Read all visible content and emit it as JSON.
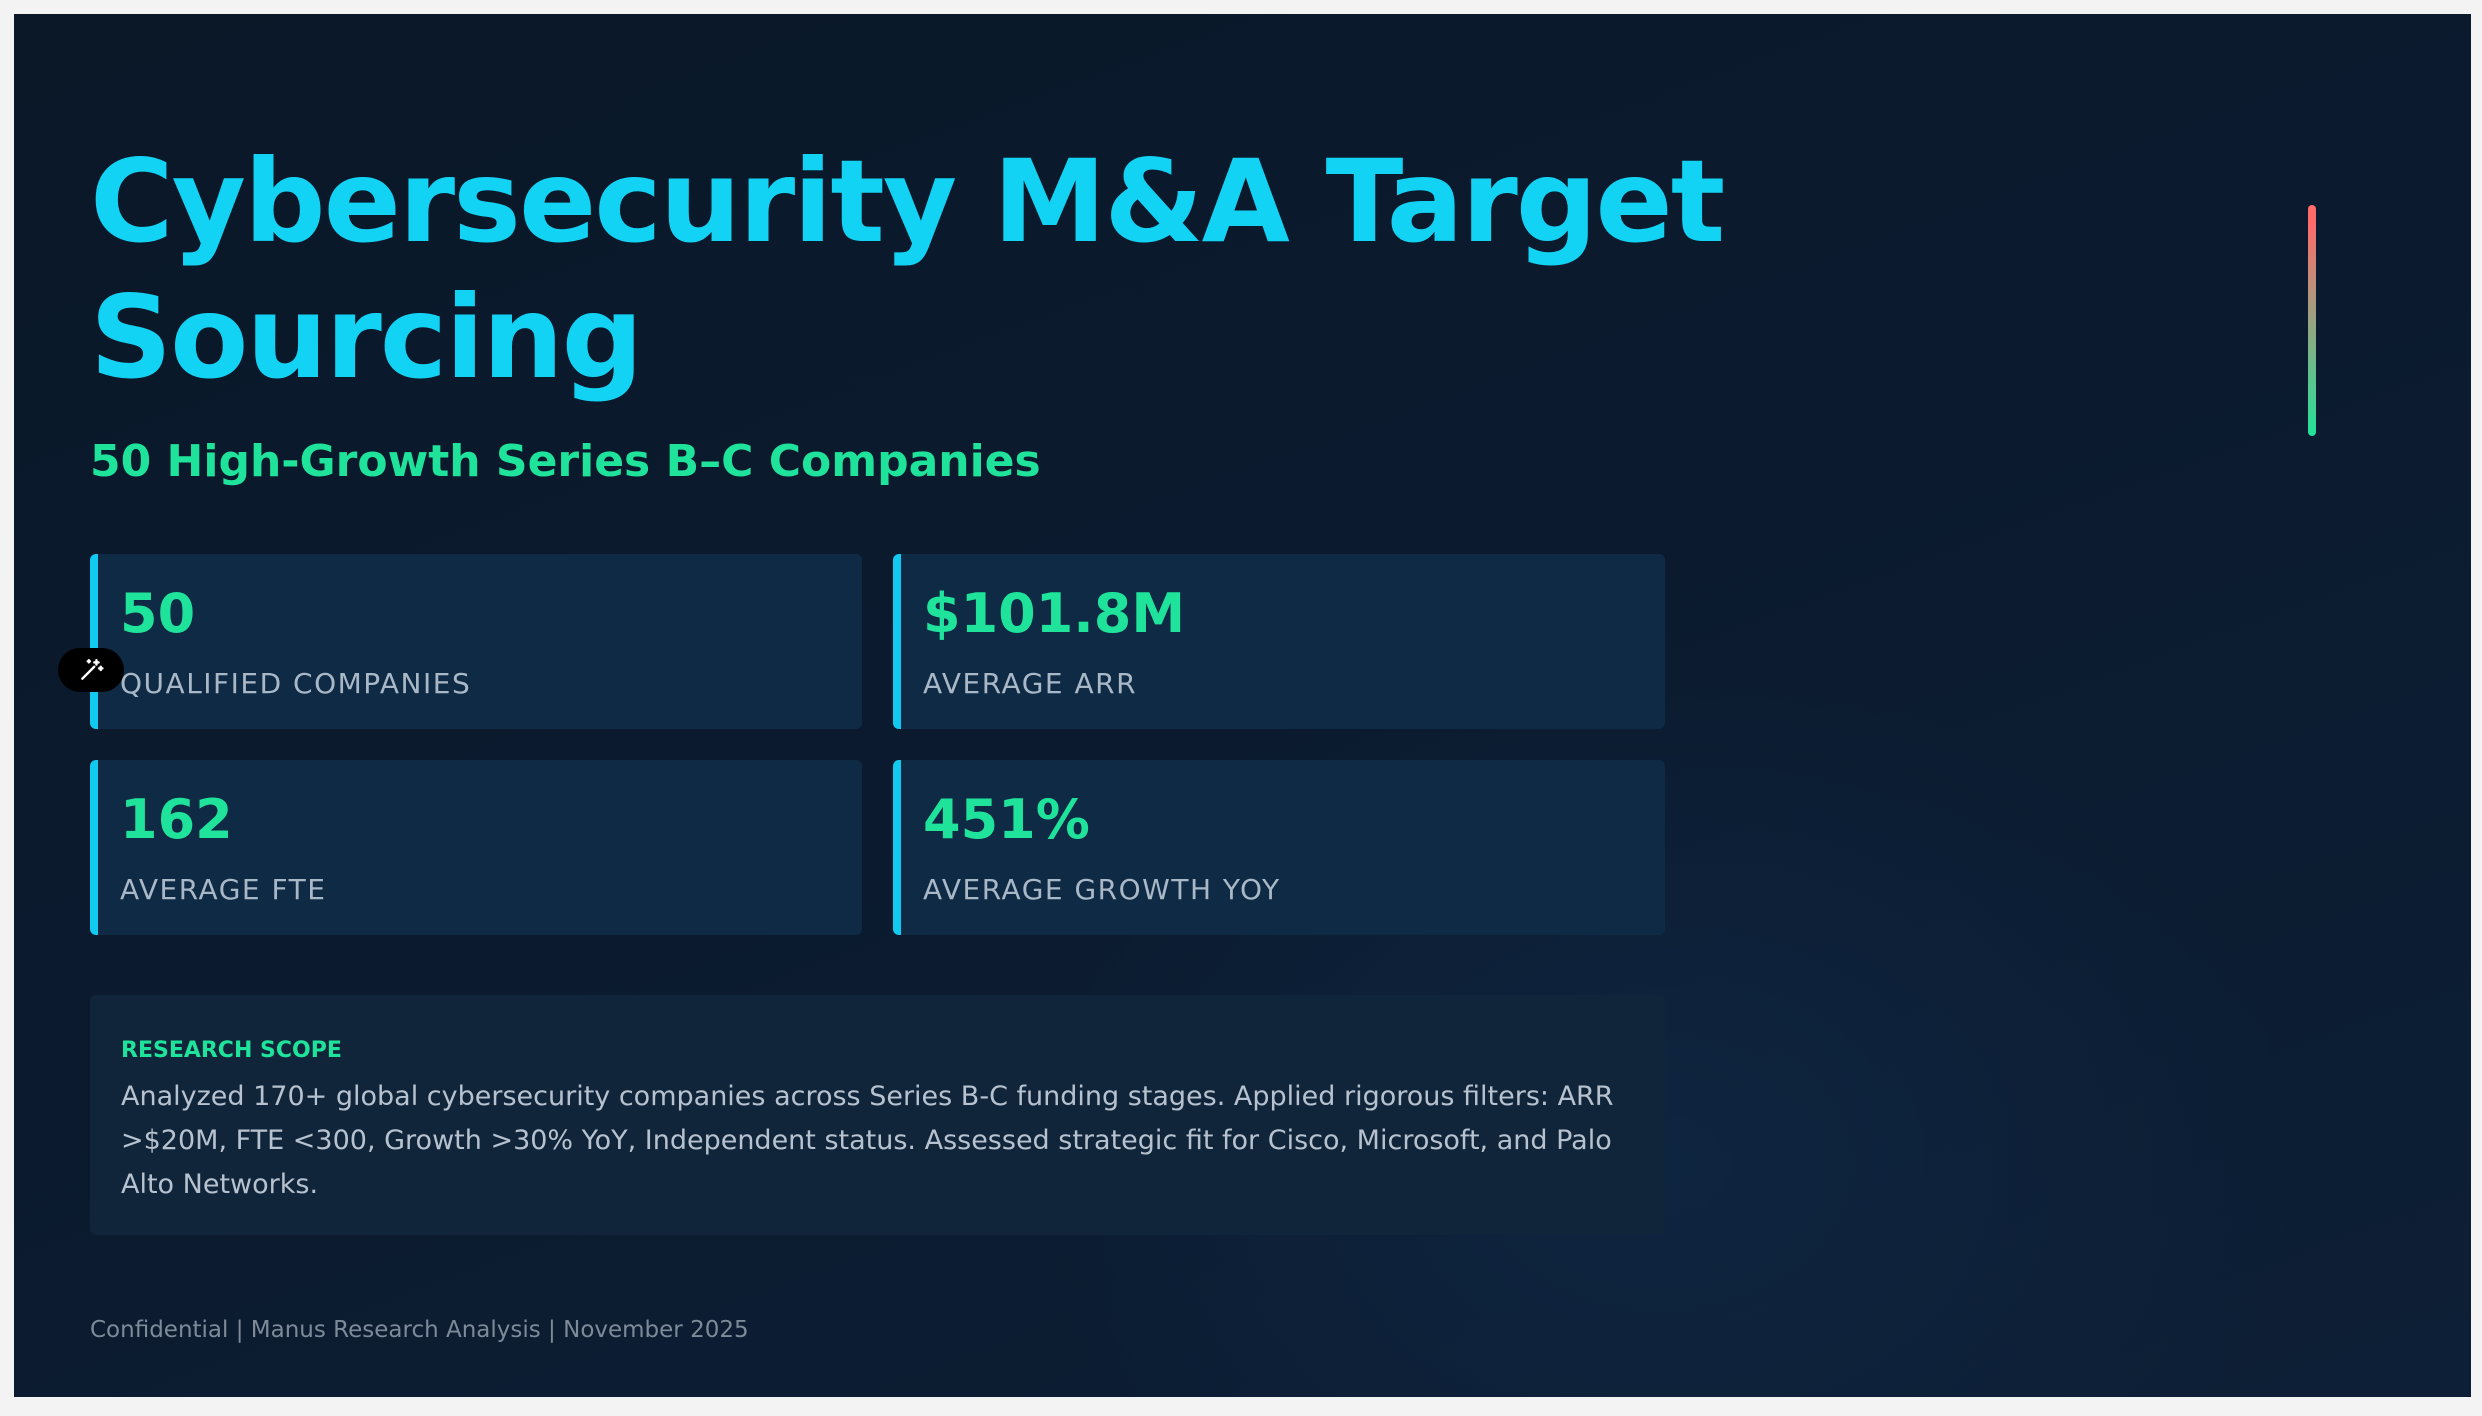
{
  "slide": {
    "title": "Cybersecurity M&A Target Sourcing",
    "subtitle": "50 High-Growth Series B–C Companies",
    "stats": [
      {
        "value": "50",
        "label": "QUALIFIED COMPANIES"
      },
      {
        "value": "$101.8M",
        "label": "AVERAGE ARR"
      },
      {
        "value": "162",
        "label": "AVERAGE FTE"
      },
      {
        "value": "451%",
        "label": "AVERAGE GROWTH YOY"
      }
    ],
    "scope": {
      "heading": "RESEARCH SCOPE",
      "body": "Analyzed 170+ global cybersecurity companies across Series B-C funding stages. Applied rigorous filters: ARR >$20M, FTE <300, Growth >30% YoY, Independent status. Assessed strategic fit for Cisco, Microsoft, and Palo Alto Networks."
    },
    "footer": "Confidential | Manus Research Analysis | November 2025"
  },
  "icons": {
    "edit_fab": "magic-wand-icon"
  },
  "colors": {
    "background": "#0b1a2e",
    "title": "#12d3f3",
    "accent_green": "#1fe39b",
    "card": "#0f2a45",
    "card_border": "#12c9f0",
    "accent_red": "#ff6b6b"
  }
}
